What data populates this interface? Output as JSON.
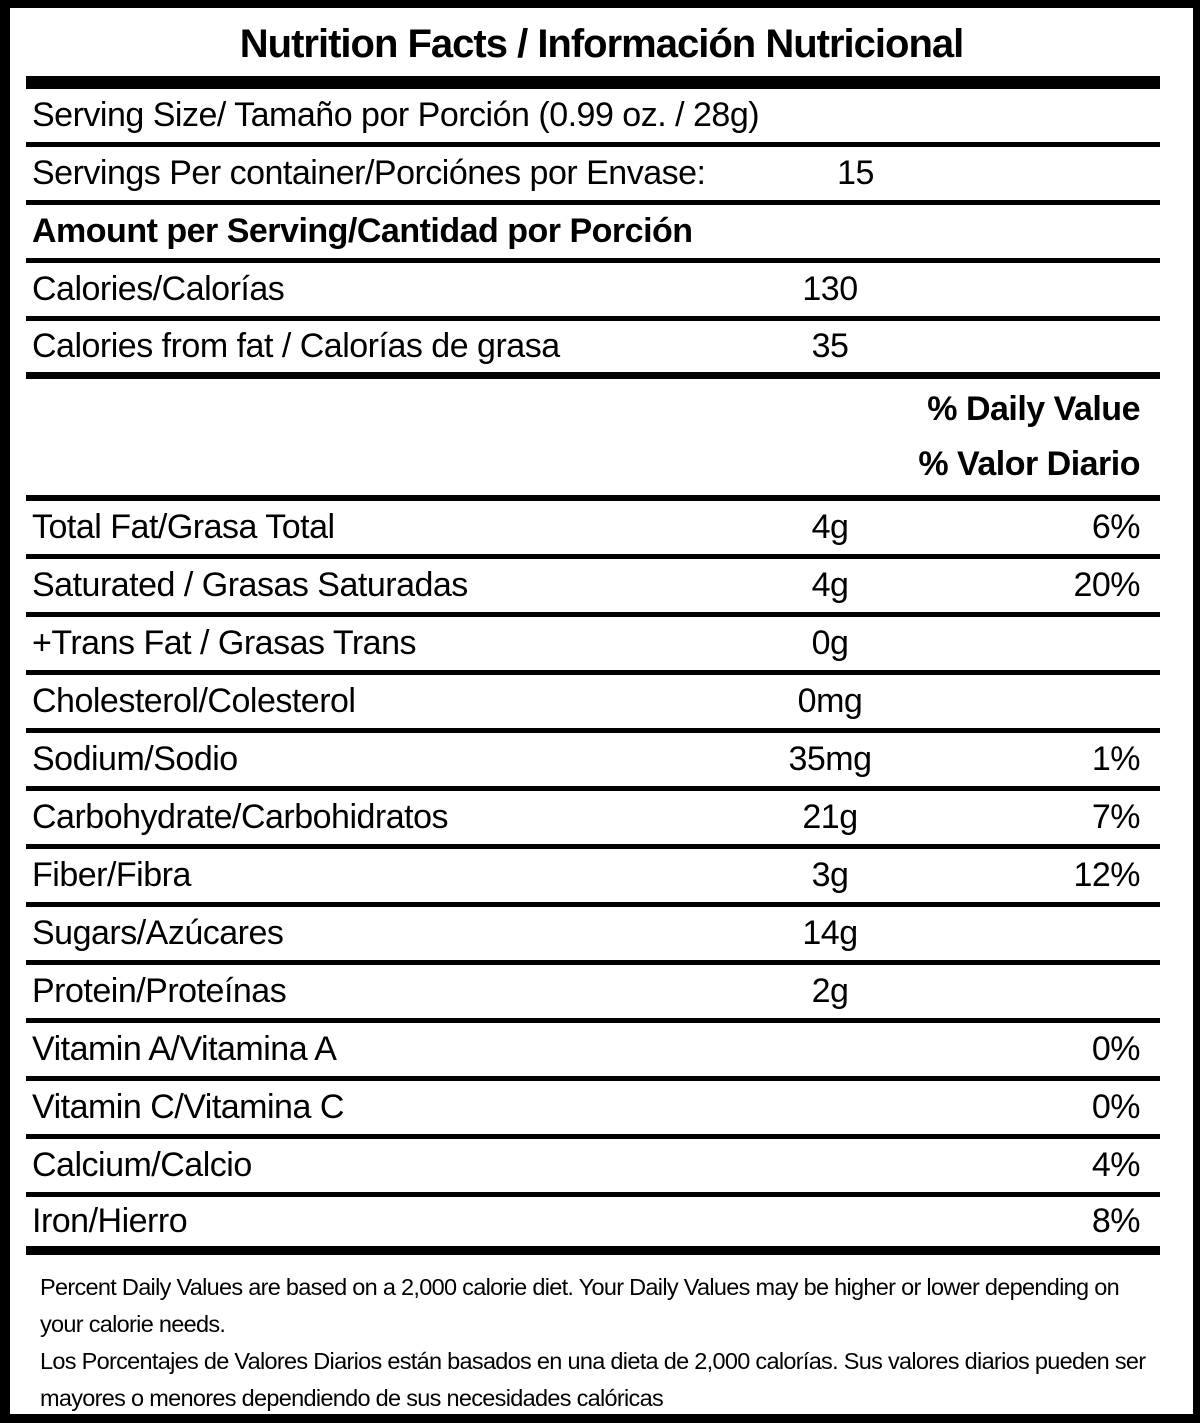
{
  "label": {
    "title": "Nutrition Facts / Información Nutricional",
    "serving_size": {
      "label": "Serving Size/ Tamaño por Porción  (0.99 oz. / 28g)"
    },
    "servings_per_container": {
      "label": "Servings Per container/Porciónes por Envase:",
      "value": "15"
    },
    "amount_per_serving": {
      "label": "Amount per Serving/Cantidad por Porción"
    },
    "calories": {
      "label": "Calories/Calorías",
      "value": "130"
    },
    "calories_from_fat": {
      "label": "Calories from fat / Calorías de grasa",
      "value": "35"
    },
    "daily_value_header": {
      "line1": "% Daily Value",
      "line2": "% Valor Diario"
    },
    "nutrients": [
      {
        "label": "Total Fat/Grasa Total",
        "value": "4g",
        "pct": "6%"
      },
      {
        "label": "Saturated / Grasas Saturadas",
        "value": "4g",
        "pct": "20%"
      },
      {
        "label": "+Trans Fat / Grasas Trans",
        "value": "0g",
        "pct": ""
      },
      {
        "label": "Cholesterol/Colesterol",
        "value": "0mg",
        "pct": ""
      },
      {
        "label": "Sodium/Sodio",
        "value": "35mg",
        "pct": "1%"
      },
      {
        "label": "Carbohydrate/Carbohidratos",
        "value": "21g",
        "pct": "7%"
      },
      {
        "label": "Fiber/Fibra",
        "value": "3g",
        "pct": "12%"
      },
      {
        "label": "Sugars/Azúcares",
        "value": "14g",
        "pct": ""
      },
      {
        "label": "Protein/Proteínas",
        "value": "2g",
        "pct": ""
      },
      {
        "label": "Vitamin A/Vitamina A",
        "value": "",
        "pct": "0%"
      },
      {
        "label": "Vitamin C/Vitamina C",
        "value": "",
        "pct": "0%"
      },
      {
        "label": "Calcium/Calcio",
        "value": "",
        "pct": "4%"
      },
      {
        "label": "Iron/Hierro",
        "value": "",
        "pct": "8%"
      }
    ],
    "footnotes": {
      "english": "Percent Daily Values are based on a 2,000 calorie diet. Your Daily Values may be higher or lower depending on your calorie needs.",
      "spanish": "Los Porcentajes de Valores Diarios están basados en una dieta de 2,000 calorías. Sus valores diarios pueden ser mayores o menores dependiendo de sus necesidades calóricas"
    }
  }
}
